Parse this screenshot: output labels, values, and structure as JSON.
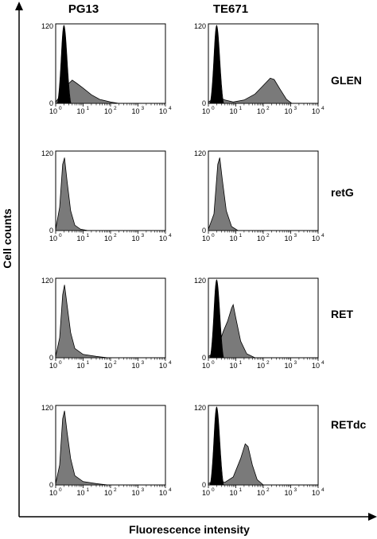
{
  "chart_data": {
    "type": "area",
    "ylabel": "Cell counts",
    "xlabel": "Fluorescence intensity",
    "columns": [
      "PG13",
      "TE671"
    ],
    "rows": [
      "GLEN",
      "retG",
      "RET",
      "RETdc"
    ],
    "x_scale": "log",
    "xlim": [
      1,
      10000
    ],
    "ylim": [
      0,
      120
    ],
    "x_ticks": [
      {
        "base": "10",
        "exp": "0"
      },
      {
        "base": "10",
        "exp": "1"
      },
      {
        "base": "10",
        "exp": "2"
      },
      {
        "base": "10",
        "exp": "3"
      },
      {
        "base": "10",
        "exp": "4"
      }
    ],
    "y_ticks": [
      "0",
      "120"
    ],
    "colors": {
      "control": "#000000",
      "sample": "#7a7a7a"
    },
    "panels": [
      {
        "row": "GLEN",
        "column": "PG13",
        "control": {
          "peak_x": 2.0,
          "peak_y": 118
        },
        "sample": [
          [
            1.0,
            2
          ],
          [
            1.5,
            12
          ],
          [
            2.0,
            22
          ],
          [
            3.0,
            30
          ],
          [
            4.0,
            35
          ],
          [
            6.0,
            30
          ],
          [
            10.0,
            23
          ],
          [
            20.0,
            13
          ],
          [
            40.0,
            6
          ],
          [
            100.0,
            2
          ],
          [
            200.0,
            0
          ]
        ]
      },
      {
        "row": "GLEN",
        "column": "TE671",
        "control": {
          "peak_x": 2.0,
          "peak_y": 118
        },
        "sample": [
          [
            1.0,
            2
          ],
          [
            2.0,
            10
          ],
          [
            4.0,
            5
          ],
          [
            8.0,
            2
          ],
          [
            20.0,
            5
          ],
          [
            50.0,
            14
          ],
          [
            100.0,
            27
          ],
          [
            180.0,
            38
          ],
          [
            250.0,
            36
          ],
          [
            400.0,
            22
          ],
          [
            700.0,
            6
          ],
          [
            1100.0,
            0
          ]
        ]
      },
      {
        "row": "retG",
        "column": "PG13",
        "control": null,
        "sample": [
          [
            1.0,
            2
          ],
          [
            1.4,
            35
          ],
          [
            1.8,
            100
          ],
          [
            2.1,
            110
          ],
          [
            2.6,
            75
          ],
          [
            3.5,
            30
          ],
          [
            5.0,
            8
          ],
          [
            8.0,
            2
          ],
          [
            15.0,
            0
          ]
        ]
      },
      {
        "row": "retG",
        "column": "TE671",
        "control": null,
        "sample": [
          [
            1.0,
            2
          ],
          [
            1.6,
            25
          ],
          [
            2.2,
            100
          ],
          [
            2.6,
            110
          ],
          [
            3.2,
            78
          ],
          [
            4.5,
            30
          ],
          [
            7.0,
            6
          ],
          [
            12.0,
            0
          ]
        ]
      },
      {
        "row": "RET",
        "column": "PG13",
        "control": null,
        "sample": [
          [
            1.0,
            2
          ],
          [
            1.4,
            30
          ],
          [
            1.8,
            95
          ],
          [
            2.1,
            110
          ],
          [
            2.6,
            80
          ],
          [
            3.5,
            38
          ],
          [
            5.0,
            14
          ],
          [
            10.0,
            5
          ],
          [
            30.0,
            2
          ],
          [
            80.0,
            0
          ]
        ]
      },
      {
        "row": "RET",
        "column": "TE671",
        "control": {
          "peak_x": 2.0,
          "peak_y": 118
        },
        "sample": [
          [
            1.0,
            2
          ],
          [
            2.0,
            10
          ],
          [
            3.5,
            40
          ],
          [
            5.0,
            55
          ],
          [
            7.0,
            75
          ],
          [
            8.0,
            80
          ],
          [
            10.0,
            60
          ],
          [
            15.0,
            25
          ],
          [
            25.0,
            6
          ],
          [
            50.0,
            0
          ]
        ]
      },
      {
        "row": "RETdc",
        "column": "PG13",
        "control": null,
        "sample": [
          [
            1.0,
            2
          ],
          [
            1.4,
            30
          ],
          [
            1.8,
            100
          ],
          [
            2.1,
            112
          ],
          [
            2.6,
            80
          ],
          [
            3.5,
            40
          ],
          [
            5.0,
            14
          ],
          [
            10.0,
            5
          ],
          [
            30.0,
            2
          ],
          [
            80.0,
            0
          ]
        ]
      },
      {
        "row": "RETdc",
        "column": "TE671",
        "control": {
          "peak_x": 2.0,
          "peak_y": 118
        },
        "sample": [
          [
            1.0,
            2
          ],
          [
            2.0,
            8
          ],
          [
            4.0,
            4
          ],
          [
            8.0,
            12
          ],
          [
            15.0,
            40
          ],
          [
            22.0,
            62
          ],
          [
            28.0,
            58
          ],
          [
            40.0,
            30
          ],
          [
            60.0,
            8
          ],
          [
            100.0,
            0
          ]
        ]
      }
    ]
  }
}
